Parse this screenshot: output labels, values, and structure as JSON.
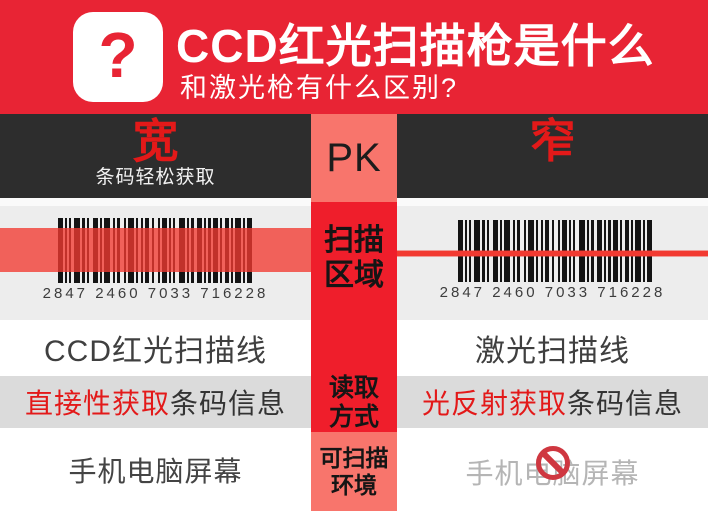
{
  "header": {
    "icon": "question-mark",
    "title": "CCD红光扫描枪是什么",
    "subtitle": "和激光枪有什么区别?"
  },
  "compare_bar": {
    "left_label": "宽",
    "left_sub": "条码轻松获取",
    "right_label": "窄"
  },
  "center_column": {
    "pk_label": "PK",
    "scan_area_line1": "扫描",
    "scan_area_line2": "区域",
    "read_mode_line1": "读取",
    "read_mode_line2": "方式",
    "env_line1": "可扫描",
    "env_line2": "环境"
  },
  "scan_area": {
    "left_number": "2847 2460 7033 716228",
    "right_number": "2847 2460 7033 716228"
  },
  "rows": {
    "scan_line": {
      "left": "CCD红光扫描线",
      "right": "激光扫描线"
    },
    "read_mode": {
      "left_em": "直接性获取",
      "left_rest": "条码信息",
      "right_em": "光反射获取",
      "right_rest": "条码信息"
    },
    "environment": {
      "left": "手机电脑屏幕",
      "right": "手机电脑屏幕"
    }
  },
  "colors": {
    "header-red": "#e82434",
    "deep-red": "#ef1e2b",
    "salmon": "#f8756c",
    "accent-red": "#e31919",
    "dark-bar": "#2d2d2d",
    "panel-gray": "#ededed",
    "row-gray": "#dbdbdb",
    "muted-text": "#b5b5b5",
    "scanline-red": "#f23a31"
  },
  "barcode": {
    "pattern": [
      [
        5,
        2
      ],
      [
        2,
        2
      ],
      [
        2,
        3
      ],
      [
        6,
        2
      ],
      [
        3,
        2
      ],
      [
        2,
        4
      ],
      [
        5,
        2
      ],
      [
        2,
        2
      ],
      [
        6,
        3
      ],
      [
        2,
        2
      ],
      [
        3,
        4
      ],
      [
        2,
        2
      ],
      [
        6,
        2
      ],
      [
        2,
        3
      ],
      [
        2,
        2
      ],
      [
        4,
        3
      ],
      [
        2,
        4
      ],
      [
        2,
        2
      ],
      [
        5,
        2
      ],
      [
        2,
        2
      ],
      [
        2,
        4
      ],
      [
        6,
        2
      ],
      [
        2,
        2
      ],
      [
        3,
        3
      ],
      [
        5,
        2
      ],
      [
        2,
        2
      ],
      [
        3,
        2
      ],
      [
        5,
        2
      ],
      [
        2,
        3
      ],
      [
        4,
        2
      ],
      [
        2,
        2
      ],
      [
        6,
        2
      ],
      [
        2,
        2
      ],
      [
        5,
        0
      ]
    ]
  }
}
